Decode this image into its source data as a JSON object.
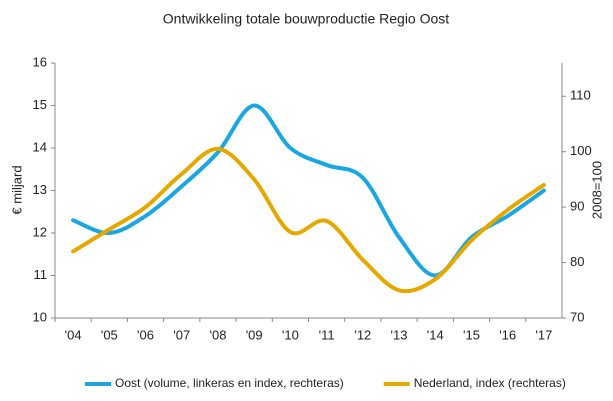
{
  "chart_data": {
    "type": "line",
    "title": "Ontwikkeling totale bouwproductie Regio Oost",
    "y_label": "€ miljard",
    "y2_label": "2008=100",
    "categories": [
      "'04",
      "'05",
      "'06",
      "'07",
      "'08",
      "'09",
      "'10",
      "'11",
      "'12",
      "'13",
      "'14",
      "'15",
      "'16",
      "'17"
    ],
    "series": [
      {
        "name": "Oost (volume, linkeras en index, rechteras)",
        "color": "#1aa6e0",
        "values": [
          12.3,
          12.0,
          12.4,
          13.1,
          13.9,
          15.0,
          14.0,
          13.6,
          13.3,
          11.9,
          11.0,
          11.9,
          12.4,
          13.0
        ]
      },
      {
        "name": "Nederland, index (rechteras)",
        "color": "#e6a800",
        "axis": "y2",
        "values": [
          82,
          86,
          90,
          96,
          100.5,
          95,
          85.5,
          87.5,
          80.5,
          75,
          77,
          84,
          89.5,
          94
        ]
      }
    ],
    "ylim": [
      10,
      16
    ],
    "yticks": [
      10,
      11,
      12,
      13,
      14,
      15,
      16
    ],
    "y2lim": [
      70,
      116
    ],
    "y2ticks": [
      70,
      80,
      90,
      100,
      110
    ],
    "legend": "bottom"
  }
}
